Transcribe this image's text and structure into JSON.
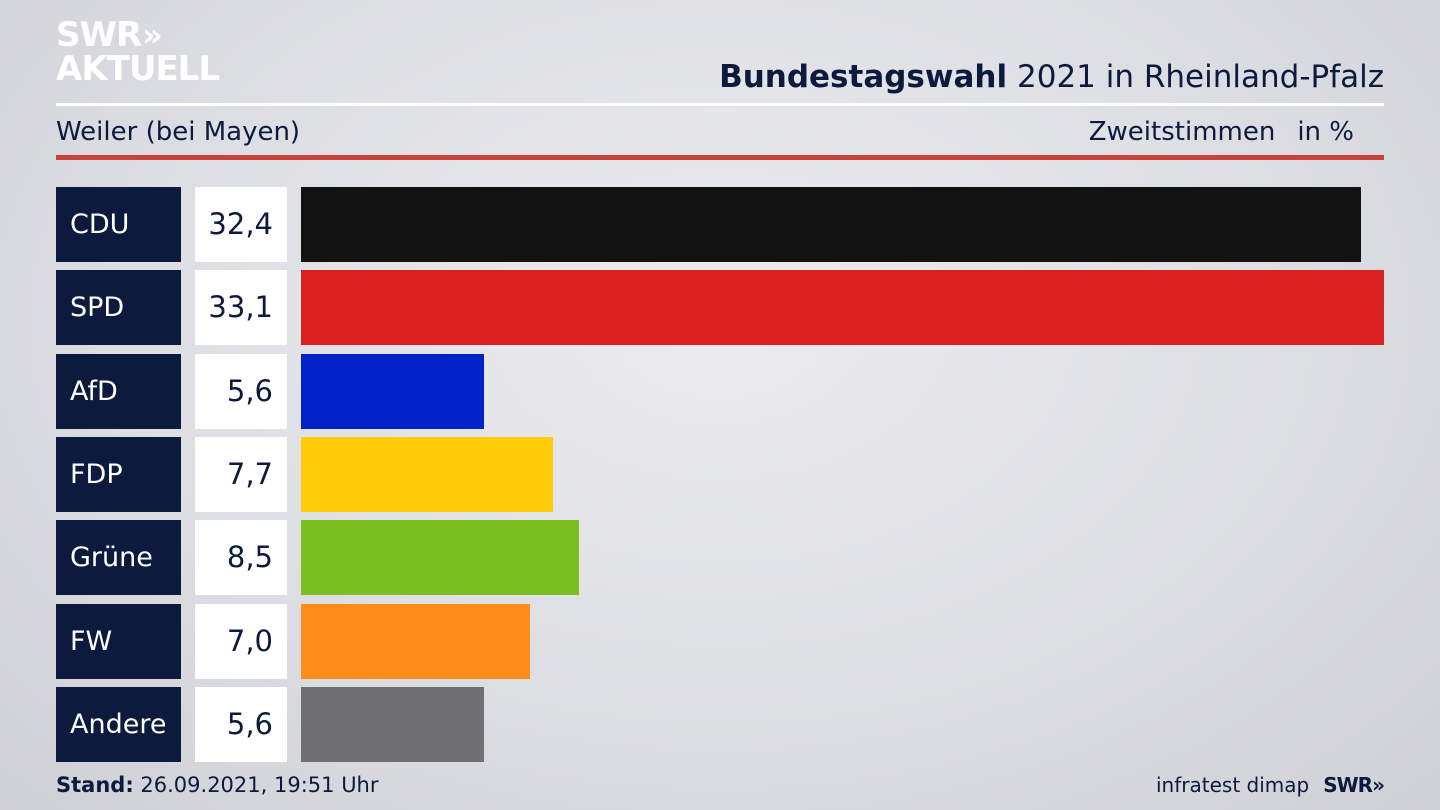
{
  "logo": {
    "line1": "SWR",
    "arrows": "»",
    "line2": "AKTUELL"
  },
  "header": {
    "title_bold": "Bundestagswahl",
    "title_rest": "2021 in Rheinland-Pfalz",
    "region": "Weiler (bei Mayen)",
    "metric": "Zweitstimmen",
    "unit": "in %"
  },
  "chart_data": {
    "type": "bar",
    "orientation": "horizontal",
    "categories": [
      "CDU",
      "SPD",
      "AfD",
      "FDP",
      "Grüne",
      "FW",
      "Andere"
    ],
    "values": [
      32.4,
      33.1,
      5.6,
      7.7,
      8.5,
      7.0,
      5.6
    ],
    "value_labels": [
      "32,4",
      "33,1",
      "5,6",
      "7,7",
      "8,5",
      "7,0",
      "5,6"
    ],
    "colors": [
      "#121212",
      "#d82020",
      "#0022c8",
      "#fecc0a",
      "#7abf1e",
      "#fe8c18",
      "#707073"
    ],
    "xlim": [
      0,
      33.1
    ],
    "grid": false,
    "legend": "none"
  },
  "footer": {
    "stand_label": "Stand:",
    "stand_value": "26.09.2021, 19:51 Uhr",
    "source": "infratest dimap",
    "brand": "SWR",
    "brand_arrows": "»"
  }
}
